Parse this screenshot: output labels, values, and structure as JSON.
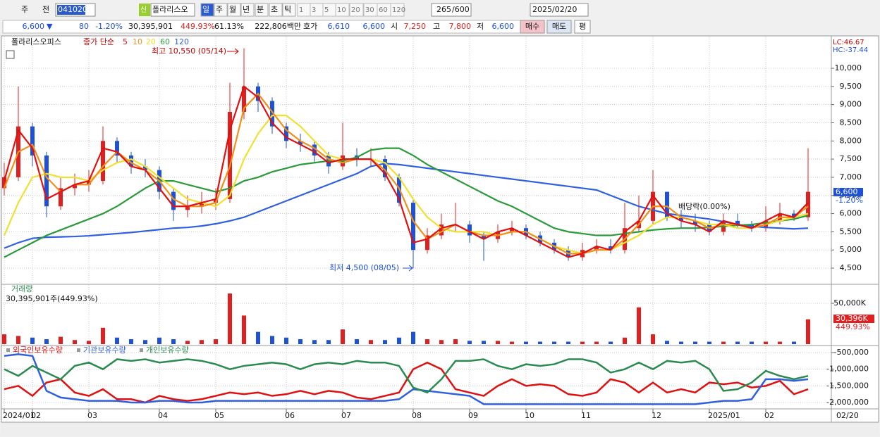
{
  "toolbar": {
    "market": "주",
    "prev": "전",
    "code": "041020",
    "badge": "신",
    "name": "폴라리스오",
    "periods": [
      "일",
      "주",
      "월",
      "년",
      "분",
      "초",
      "틱"
    ],
    "intervals": [
      "1",
      "3",
      "5",
      "10",
      "20",
      "30",
      "60",
      "120"
    ],
    "count": "265",
    "max": "/600",
    "date": "2025/02/20"
  },
  "quote": {
    "price": "6,600",
    "arrow": "▼",
    "change": "80",
    "rate": "-1.20%",
    "volume": "30,395,901",
    "vol_rate": "449.93%",
    "turnover": "61.13%",
    "amount": "222,806백만",
    "ask_label": "호가",
    "ask": "6,610",
    "bid": "6,600",
    "open_label": "시",
    "open": "7,250",
    "high_label": "고",
    "high": "7,800",
    "low_label": "저",
    "low": "6,600",
    "buy": "매수",
    "sell": "매도",
    "avg": "평"
  },
  "chart_data": [
    {
      "type": "candlestick",
      "title": "폴라리스오피스",
      "ma_label": "종가 단순",
      "lc": "LC:46.67",
      "hc": "HC:-37.44",
      "price_tag": "6,600",
      "change_tag": "-1.20%",
      "end_label": "02/20",
      "annotations": [
        "최고 10,550 (05/14)",
        "최저 4,500 (08/05)",
        "배당락(0.00%)"
      ],
      "categories": [
        "2024/01",
        null,
        "02",
        null,
        null,
        null,
        "03",
        null,
        null,
        null,
        null,
        "04",
        null,
        null,
        null,
        "05",
        null,
        null,
        null,
        null,
        "06",
        null,
        null,
        null,
        "07",
        null,
        null,
        null,
        null,
        "08",
        null,
        null,
        null,
        "09",
        null,
        null,
        null,
        "10",
        null,
        null,
        null,
        "11",
        null,
        null,
        null,
        null,
        "12",
        null,
        null,
        null,
        "2025/01",
        null,
        null,
        null,
        "02",
        null,
        null,
        null
      ],
      "open": [
        6700,
        7000,
        8400,
        7600,
        6200,
        6700,
        6800,
        6900,
        8000,
        7600,
        7300,
        7200,
        6600,
        6100,
        6200,
        6300,
        6400,
        8800,
        9500,
        9100,
        8400,
        8000,
        7900,
        7600,
        7300,
        7600,
        7500,
        7500,
        7000,
        6300,
        5000,
        5400,
        5700,
        5700,
        5400,
        5300,
        5500,
        5600,
        5400,
        5200,
        5000,
        4800,
        5000,
        5100,
        5000,
        5600,
        5800,
        6600,
        5900,
        5800,
        5700,
        5500,
        5800,
        5700,
        5600,
        5800,
        6000,
        5900
      ],
      "high": [
        7400,
        9500,
        8500,
        7700,
        7000,
        7100,
        7200,
        8400,
        8100,
        7700,
        7500,
        7300,
        6700,
        6500,
        6600,
        6700,
        9600,
        10550,
        9600,
        9200,
        8500,
        8200,
        8000,
        7700,
        8500,
        7800,
        7800,
        7600,
        7100,
        6400,
        5600,
        6000,
        6300,
        5800,
        5500,
        5700,
        5800,
        5700,
        5500,
        5300,
        5100,
        5200,
        5300,
        5300,
        6300,
        6500,
        7200,
        6600,
        6100,
        6000,
        5800,
        6000,
        6000,
        5800,
        6200,
        6300,
        6100,
        7800
      ],
      "low": [
        6500,
        6900,
        7300,
        5900,
        6100,
        6500,
        6600,
        6800,
        7400,
        7100,
        7000,
        6400,
        5800,
        5900,
        6000,
        6100,
        6300,
        8600,
        8800,
        8200,
        7800,
        7700,
        7400,
        7100,
        7200,
        7300,
        7300,
        6900,
        6200,
        4500,
        4900,
        5300,
        5500,
        5200,
        4700,
        5200,
        5400,
        5300,
        5100,
        4900,
        4700,
        4700,
        4900,
        4900,
        4900,
        5500,
        5700,
        5800,
        5600,
        5500,
        5400,
        5400,
        5600,
        5500,
        5500,
        5700,
        5800,
        5800
      ],
      "close": [
        7000,
        8400,
        7600,
        6200,
        6700,
        6800,
        6900,
        8000,
        7600,
        7300,
        7200,
        6600,
        6100,
        6200,
        6300,
        6400,
        8800,
        9500,
        9100,
        8400,
        8000,
        7900,
        7600,
        7300,
        7600,
        7500,
        7500,
        7000,
        6300,
        5000,
        5400,
        5700,
        5700,
        5400,
        5300,
        5500,
        5600,
        5400,
        5200,
        5000,
        4800,
        5000,
        5100,
        5000,
        5600,
        5800,
        6600,
        5900,
        5800,
        5700,
        5500,
        5800,
        5700,
        5600,
        5800,
        6000,
        5900,
        6600
      ],
      "up_color": "#e02020",
      "down_color": "#1e50d8",
      "series": [
        {
          "name": "120",
          "color": "#3060e0",
          "values": [
            5050,
            5200,
            5320,
            5350,
            5360,
            5370,
            5390,
            5420,
            5450,
            5480,
            5520,
            5560,
            5600,
            5620,
            5660,
            5720,
            5800,
            5900,
            6050,
            6200,
            6350,
            6500,
            6650,
            6800,
            6950,
            7100,
            7300,
            7380,
            7350,
            7300,
            7250,
            7200,
            7150,
            7100,
            7050,
            7000,
            6950,
            6900,
            6850,
            6800,
            6750,
            6700,
            6650,
            6500,
            6350,
            6200,
            6100,
            6000,
            5950,
            5900,
            5850,
            5780,
            5700,
            5650,
            5620,
            5600,
            5580,
            5600
          ]
        },
        {
          "name": "60",
          "color": "#2a9a3a",
          "values": [
            4800,
            5000,
            5200,
            5400,
            5550,
            5700,
            5850,
            6000,
            6200,
            6450,
            6700,
            6900,
            6900,
            6800,
            6700,
            6600,
            6700,
            6900,
            7000,
            7150,
            7250,
            7350,
            7400,
            7450,
            7450,
            7550,
            7750,
            7800,
            7800,
            7600,
            7350,
            7150,
            6950,
            6750,
            6550,
            6350,
            6200,
            6000,
            5800,
            5600,
            5500,
            5450,
            5400,
            5400,
            5450,
            5500,
            5550,
            5580,
            5600,
            5600,
            5620,
            5650,
            5680,
            5700,
            5750,
            5800,
            5850,
            5950
          ]
        },
        {
          "name": "20",
          "color": "#f0e030",
          "values": [
            5400,
            6300,
            7000,
            7100,
            7000,
            7000,
            6900,
            7200,
            7400,
            7500,
            7300,
            7000,
            6700,
            6400,
            6300,
            6200,
            6500,
            7500,
            8200,
            8700,
            8700,
            8400,
            8000,
            7600,
            7500,
            7500,
            7500,
            7400,
            7000,
            6400,
            5900,
            5600,
            5500,
            5500,
            5500,
            5400,
            5500,
            5500,
            5300,
            5100,
            5000,
            4900,
            5000,
            5000,
            5200,
            5400,
            5700,
            5900,
            5900,
            5800,
            5700,
            5700,
            5600,
            5600,
            5700,
            5800,
            5900,
            6000
          ]
        },
        {
          "name": "10",
          "color": "#f0901a",
          "values": [
            6700,
            7700,
            7900,
            7000,
            6600,
            6800,
            6800,
            7300,
            7700,
            7400,
            7200,
            6900,
            6400,
            6200,
            6200,
            6300,
            7300,
            8900,
            9300,
            8800,
            8300,
            8000,
            7800,
            7500,
            7400,
            7500,
            7500,
            7200,
            6700,
            5800,
            5300,
            5500,
            5700,
            5500,
            5400,
            5400,
            5500,
            5500,
            5300,
            5100,
            4900,
            4900,
            5000,
            5000,
            5300,
            5700,
            6200,
            6200,
            5900,
            5800,
            5600,
            5700,
            5700,
            5600,
            5700,
            5900,
            5900,
            6200
          ]
        },
        {
          "name": "5",
          "color": "#e01010",
          "values": [
            6900,
            8300,
            7800,
            6400,
            6600,
            6800,
            6900,
            7800,
            7700,
            7300,
            7200,
            6700,
            6200,
            6200,
            6300,
            6400,
            8300,
            9500,
            9200,
            8500,
            8100,
            7900,
            7700,
            7400,
            7500,
            7500,
            7500,
            7100,
            6400,
            5200,
            5300,
            5600,
            5700,
            5500,
            5300,
            5500,
            5600,
            5400,
            5200,
            5000,
            4800,
            4900,
            5100,
            5000,
            5500,
            5800,
            6500,
            6000,
            5800,
            5700,
            5500,
            5800,
            5700,
            5600,
            5800,
            6000,
            5900,
            6300
          ]
        }
      ],
      "ylim": [
        4074,
        10756
      ],
      "yticks": [
        {
          "value": 4500,
          "label": "4,500"
        },
        {
          "value": 5000,
          "label": "5,000"
        },
        {
          "value": 5500,
          "label": "5,500"
        },
        {
          "value": 6000,
          "label": "6,000"
        },
        {
          "value": 6500,
          "label": "6,500"
        },
        {
          "value": 7000,
          "label": "7,000"
        },
        {
          "value": 7500,
          "label": "7,500"
        },
        {
          "value": 8000,
          "label": "8,000"
        },
        {
          "value": 8500,
          "label": "8,500"
        },
        {
          "value": 9000,
          "label": "9,000"
        },
        {
          "value": 9500,
          "label": "9,500"
        },
        {
          "value": 10000,
          "label": "10,000"
        }
      ],
      "grid": true
    },
    {
      "type": "bar",
      "title": "거래량",
      "subtitle": "30,395,901주(449.93%)",
      "tag": "30,396K",
      "tag2": "449.93%",
      "values": [
        12000,
        10000,
        8000,
        6000,
        9000,
        5000,
        4000,
        20000,
        8000,
        6000,
        5000,
        8000,
        6000,
        4000,
        5000,
        6000,
        62000,
        35000,
        15000,
        10000,
        8000,
        6000,
        5000,
        5000,
        18000,
        6000,
        5000,
        5000,
        8000,
        15000,
        6000,
        5000,
        6000,
        4000,
        4000,
        4000,
        3000,
        3000,
        3000,
        3000,
        3000,
        3000,
        3000,
        3000,
        8000,
        45000,
        12000,
        4000,
        3000,
        3000,
        3000,
        3000,
        3000,
        3000,
        3000,
        3000,
        3000,
        30396
      ],
      "ylim": [
        0,
        63800
      ],
      "yticks": [
        {
          "value": 50000,
          "label": "50,000K"
        }
      ]
    },
    {
      "type": "line",
      "series": [
        {
          "name": "외국인보유수량",
          "color": "#e01010",
          "values": [
            -1600000,
            -1500000,
            -1800000,
            -1400000,
            -1300000,
            -1700000,
            -1800000,
            -1600000,
            -1900000,
            -1900000,
            -2000000,
            -1800000,
            -1900000,
            -1950000,
            -1900000,
            -1800000,
            -1700000,
            -1750000,
            -1700000,
            -1800000,
            -1750000,
            -1650000,
            -1750000,
            -1650000,
            -1700000,
            -1850000,
            -1900000,
            -1800000,
            -1700000,
            -1000000,
            -800000,
            -1000000,
            -1600000,
            -1700000,
            -1800000,
            -1500000,
            -1300000,
            -1500000,
            -1450000,
            -1500000,
            -1750000,
            -1800000,
            -1700000,
            -1300000,
            -1400000,
            -1700000,
            -1400000,
            -1700000,
            -1600000,
            -1700000,
            -1400000,
            -1450000,
            -1400000,
            -1550000,
            -1500000,
            -1350000,
            -1750000,
            -1600000
          ]
        },
        {
          "name": "기관보유수량",
          "color": "#3060e0",
          "values": [
            -600000,
            -550000,
            -600000,
            -1650000,
            -1850000,
            -1900000,
            -1950000,
            -1950000,
            -1950000,
            -2000000,
            -2000000,
            -1950000,
            -1950000,
            -2000000,
            -2000000,
            -1950000,
            -1950000,
            -1950000,
            -1950000,
            -1950000,
            -1950000,
            -1950000,
            -1950000,
            -1950000,
            -1950000,
            -1950000,
            -1950000,
            -1950000,
            -1900000,
            -1600000,
            -1650000,
            -1700000,
            -1750000,
            -1800000,
            -2050000,
            -2050000,
            -2050000,
            -2050000,
            -2050000,
            -2050000,
            -2050000,
            -2050000,
            -2050000,
            -2050000,
            -2050000,
            -2050000,
            -2050000,
            -2050000,
            -2050000,
            -2050000,
            -2000000,
            -1950000,
            -1950000,
            -1900000,
            -1300000,
            -1300000,
            -1350000,
            -1300000
          ]
        },
        {
          "name": "개인보유수량",
          "color": "#2a8a50",
          "values": [
            -1000000,
            -1200000,
            -900000,
            -1100000,
            -1300000,
            -900000,
            -800000,
            -1000000,
            -700000,
            -750000,
            -700000,
            -800000,
            -750000,
            -700000,
            -750000,
            -850000,
            -1000000,
            -900000,
            -850000,
            -800000,
            -850000,
            -1000000,
            -850000,
            -800000,
            -850000,
            -750000,
            -800000,
            -800000,
            -900000,
            -1550000,
            -1700000,
            -1300000,
            -750000,
            -750000,
            -700000,
            -900000,
            -1000000,
            -850000,
            -900000,
            -850000,
            -700000,
            -700000,
            -800000,
            -1100000,
            -1000000,
            -800000,
            -1000000,
            -750000,
            -800000,
            -750000,
            -1000000,
            -1650000,
            -1600000,
            -1400000,
            -1050000,
            -1200000,
            -1300000,
            -1200000
          ]
        }
      ],
      "ylim": [
        -2211000,
        -352000
      ],
      "yticks": [
        {
          "value": -500000,
          "label": "-500,000"
        },
        {
          "value": -1000000,
          "label": "-1,000,000"
        },
        {
          "value": -1500000,
          "label": "-1,500,000"
        },
        {
          "value": -2000000,
          "label": "-2,000,000"
        }
      ]
    }
  ]
}
